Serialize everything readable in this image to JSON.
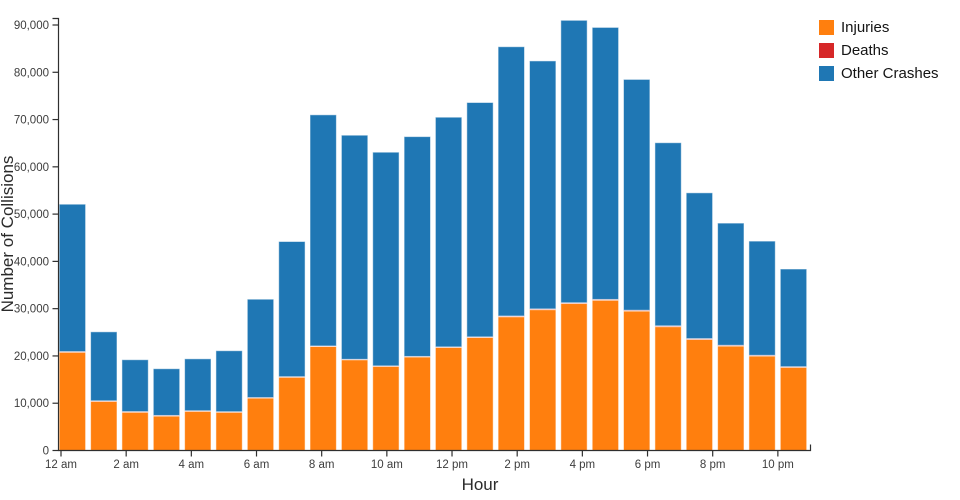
{
  "chart_data": {
    "type": "bar",
    "stacked": true,
    "title": "",
    "xlabel": "Hour",
    "ylabel": "Number of Collisions",
    "legend_position": "top-right",
    "grid": false,
    "ylim": [
      0,
      91500
    ],
    "ytick_interval": 10000,
    "ytick_labels": [
      "0",
      "10,000",
      "20,000",
      "30,000",
      "40,000",
      "50,000",
      "60,000",
      "70,000",
      "80,000",
      "90,000"
    ],
    "xtick_labels": [
      "12 am",
      "2 am",
      "4 am",
      "6 am",
      "8 am",
      "10 am",
      "12 pm",
      "2 pm",
      "4 pm",
      "6 pm",
      "8 pm",
      "10 pm"
    ],
    "categories": [
      "12 am",
      "1 am",
      "2 am",
      "3 am",
      "4 am",
      "5 am",
      "6 am",
      "7 am",
      "8 am",
      "9 am",
      "10 am",
      "11 am",
      "12 pm",
      "1 pm",
      "2 pm",
      "3 pm",
      "4 pm",
      "5 pm",
      "6 pm",
      "7 pm",
      "8 pm",
      "9 pm",
      "10 pm",
      "11 pm"
    ],
    "series": [
      {
        "name": "Injuries",
        "color": "#ff7f0e",
        "values": [
          20800,
          10400,
          8100,
          7300,
          8300,
          8100,
          11100,
          15500,
          22000,
          19200,
          17800,
          19800,
          21800,
          23900,
          28300,
          29800,
          31100,
          31800,
          29500,
          26200,
          23500,
          22100,
          20000,
          17600
        ]
      },
      {
        "name": "Deaths",
        "color": "#d62728",
        "values": [
          120,
          100,
          120,
          110,
          110,
          90,
          90,
          100,
          100,
          90,
          100,
          100,
          110,
          120,
          130,
          140,
          150,
          160,
          170,
          160,
          150,
          150,
          140,
          130
        ]
      },
      {
        "name": "Other Crashes",
        "color": "#1f77b4",
        "values": [
          31180,
          14600,
          10980,
          9890,
          10990,
          12910,
          20810,
          28600,
          48900,
          47410,
          45200,
          46500,
          48590,
          49580,
          56970,
          52460,
          59750,
          57540,
          48830,
          38740,
          30850,
          25850,
          24160,
          20670
        ]
      }
    ],
    "totals": [
      52100,
      25100,
      19200,
      17300,
      19400,
      21100,
      32000,
      44200,
      71000,
      66700,
      63100,
      66400,
      70500,
      73600,
      85400,
      82400,
      91000,
      89500,
      78500,
      65100,
      54500,
      48100,
      44300,
      38400
    ],
    "axis_color": "#2f2f2f"
  }
}
